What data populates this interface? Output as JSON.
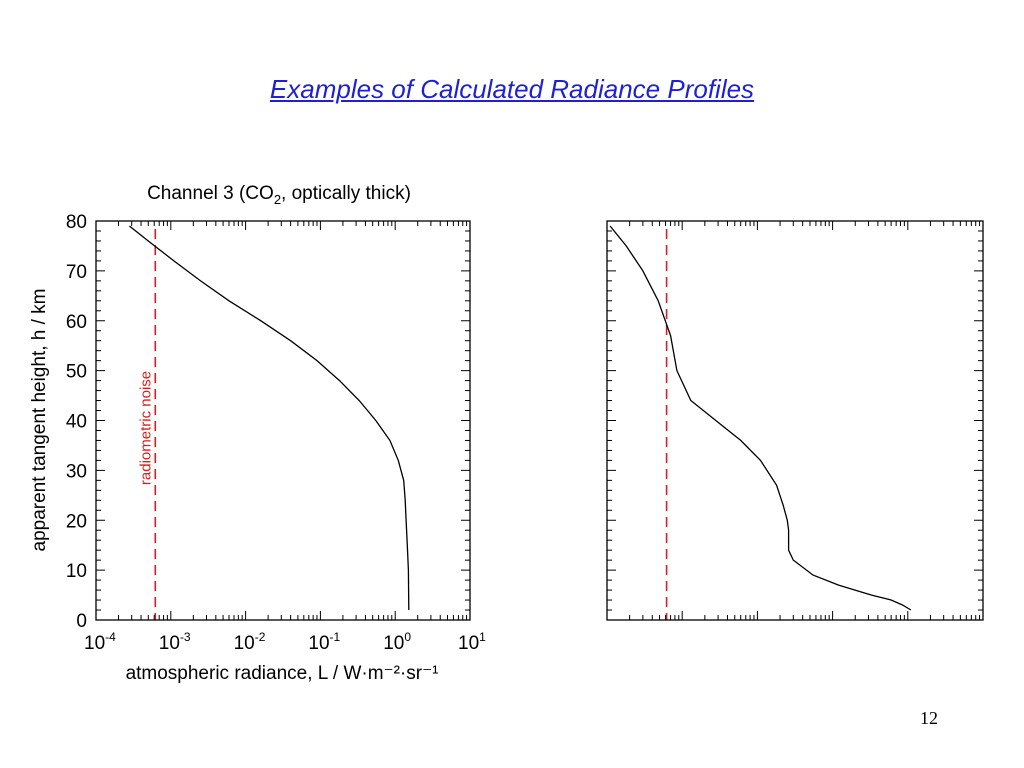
{
  "slide": {
    "title": "Examples of Calculated Radiance Profiles",
    "page_number": "12"
  },
  "colors": {
    "title": "#1f1fd6",
    "profile_line": "#000000",
    "noise_line": "#d42020",
    "axis": "#000000"
  },
  "chart_data": [
    {
      "type": "line",
      "title": "Channel 3 (CO₂, optically thick)",
      "xlabel": "atmospheric radiance, L / W·m⁻²·sr⁻¹",
      "ylabel": "apparent tangent height, h / km",
      "x_scale": "log",
      "xlim": [
        0.0001,
        10
      ],
      "ylim": [
        0,
        80
      ],
      "xticks": [
        {
          "base": "10",
          "exp": "-4"
        },
        {
          "base": "10",
          "exp": "-3"
        },
        {
          "base": "10",
          "exp": "-2"
        },
        {
          "base": "10",
          "exp": "-1"
        },
        {
          "base": "10",
          "exp": "0"
        },
        {
          "base": "10",
          "exp": "1"
        }
      ],
      "yticks": [
        0,
        10,
        20,
        30,
        40,
        50,
        60,
        70,
        80
      ],
      "noise_level": 0.00062,
      "noise_label": "radiometric noise",
      "profile": {
        "x": [
          0.00028,
          0.0005,
          0.0011,
          0.0025,
          0.006,
          0.016,
          0.04,
          0.09,
          0.18,
          0.33,
          0.55,
          0.85,
          1.1,
          1.3,
          1.36,
          1.4,
          1.45,
          1.5,
          1.52
        ],
        "y": [
          79,
          76,
          72,
          68,
          64,
          60,
          56,
          52,
          48,
          44,
          40,
          36,
          32,
          28,
          24,
          20,
          15,
          10,
          2
        ]
      }
    },
    {
      "type": "line",
      "x_scale": "log",
      "xlim": [
        0.0001,
        10
      ],
      "ylim": [
        0,
        80
      ],
      "noise_level": 0.00062,
      "profile": {
        "x": [
          0.00011,
          0.00018,
          0.0003,
          0.00048,
          0.0007,
          0.00085,
          0.0013,
          0.0028,
          0.006,
          0.011,
          0.018,
          0.022,
          0.025,
          0.026,
          0.026,
          0.03,
          0.055,
          0.12,
          0.33,
          0.6,
          0.85,
          1.1
        ],
        "y": [
          79,
          75,
          70,
          64,
          57,
          50,
          44,
          40,
          36,
          32,
          27,
          23,
          20,
          18,
          14,
          12,
          9,
          7,
          5,
          4,
          3,
          2
        ]
      }
    }
  ]
}
